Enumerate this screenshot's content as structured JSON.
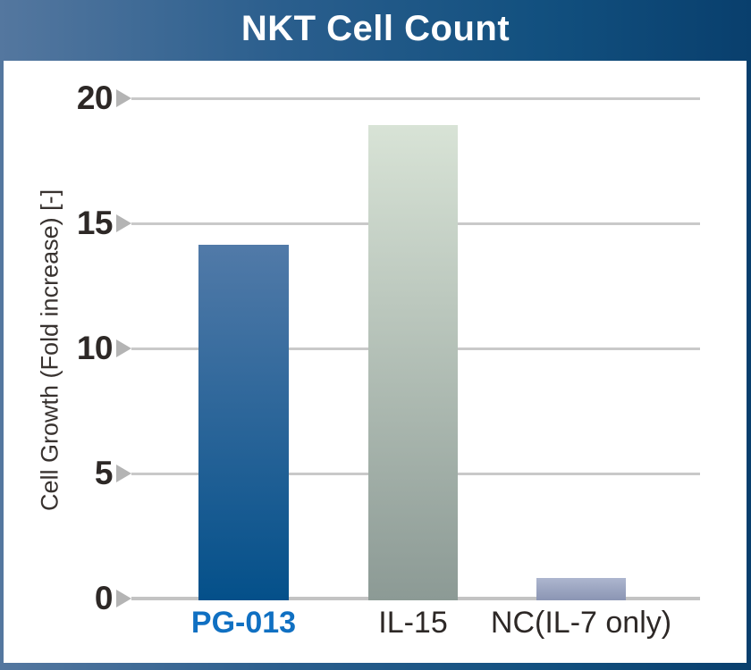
{
  "header": {
    "title": "NKT Cell Count"
  },
  "chart_data": {
    "type": "bar",
    "title": "NKT Cell Count",
    "categories": [
      "PG-013",
      "IL-15",
      "NC(IL-7 only)"
    ],
    "values": [
      14.2,
      19.0,
      0.9
    ],
    "xlabel": "",
    "ylabel": "Cell Growth (Fold increase) [-]",
    "ylim": [
      0,
      20
    ],
    "yticks": [
      0,
      5,
      10,
      15,
      20
    ],
    "grid": true,
    "legend_position": "none",
    "bar_colors": [
      {
        "top": "#517aa8",
        "bottom": "#04508a"
      },
      {
        "top": "#d8e3d6",
        "bottom": "#8c9a95"
      },
      {
        "top": "#adb6cf",
        "bottom": "#8b95b3"
      }
    ],
    "xtick_highlight_index": 0
  },
  "colors": {
    "background_gradient_left": "#54779f",
    "background_gradient_right": "#093f6d",
    "panel_background": "#ffffff",
    "gridline": "#c9c9c9",
    "tick_marker": "#b4b4b4",
    "tick_text": "#2d2826",
    "title_text": "#ffffff",
    "highlight_label": "#1070c2"
  }
}
